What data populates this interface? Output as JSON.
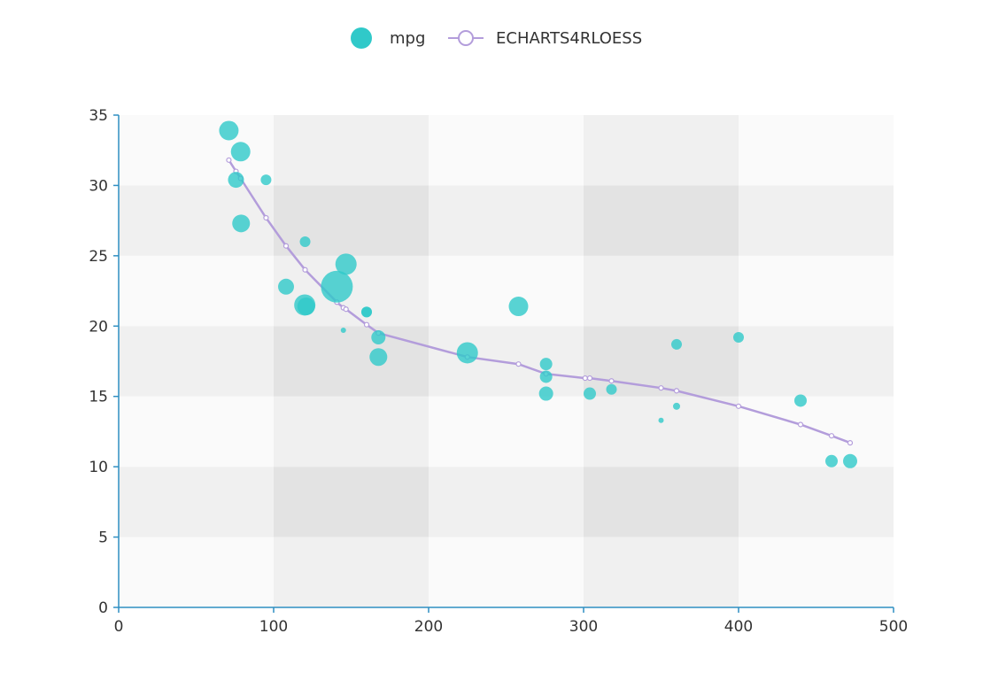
{
  "legend": {
    "placement": "top-center",
    "items": [
      {
        "label": "mpg",
        "icon": "circle-icon"
      },
      {
        "label": "ECHARTS4RLOESS",
        "icon": "line-circle-icon"
      }
    ]
  },
  "colors": {
    "scatter": "#30c9c9",
    "loess": "#b39ddb",
    "axis": "#2f8fc2",
    "band_light": "#fafafa",
    "band_mid": "#f0f0f0",
    "band_dark": "#e3e3e3"
  },
  "chart_data": {
    "type": "scatter",
    "xlim": [
      0,
      500
    ],
    "ylim": [
      0,
      35
    ],
    "x_ticks": [
      0,
      100,
      200,
      300,
      400,
      500
    ],
    "y_ticks": [
      0,
      5,
      10,
      15,
      20,
      25,
      30,
      35
    ],
    "grid": true,
    "series": [
      {
        "name": "mpg",
        "type": "scatter",
        "points": [
          {
            "x": 71.1,
            "y": 33.9,
            "size": 11
          },
          {
            "x": 78.7,
            "y": 32.4,
            "size": 11
          },
          {
            "x": 75.7,
            "y": 30.4,
            "size": 9
          },
          {
            "x": 95.1,
            "y": 30.4,
            "size": 6
          },
          {
            "x": 79.0,
            "y": 27.3,
            "size": 10
          },
          {
            "x": 120.3,
            "y": 26.0,
            "size": 6
          },
          {
            "x": 108.0,
            "y": 22.8,
            "size": 9
          },
          {
            "x": 120.1,
            "y": 21.5,
            "size": 12
          },
          {
            "x": 121.0,
            "y": 21.4,
            "size": 10
          },
          {
            "x": 140.8,
            "y": 22.8,
            "size": 18
          },
          {
            "x": 146.7,
            "y": 24.4,
            "size": 12
          },
          {
            "x": 145.0,
            "y": 19.7,
            "size": 3
          },
          {
            "x": 160.0,
            "y": 21.0,
            "size": 6
          },
          {
            "x": 160.0,
            "y": 21.0,
            "size": 6
          },
          {
            "x": 167.6,
            "y": 19.2,
            "size": 8
          },
          {
            "x": 167.6,
            "y": 17.8,
            "size": 10
          },
          {
            "x": 225.0,
            "y": 18.1,
            "size": 12
          },
          {
            "x": 258.0,
            "y": 21.4,
            "size": 11
          },
          {
            "x": 275.8,
            "y": 17.3,
            "size": 7
          },
          {
            "x": 275.8,
            "y": 16.4,
            "size": 7
          },
          {
            "x": 275.8,
            "y": 15.2,
            "size": 8
          },
          {
            "x": 304.0,
            "y": 15.2,
            "size": 7
          },
          {
            "x": 318.0,
            "y": 15.5,
            "size": 6
          },
          {
            "x": 350.0,
            "y": 13.3,
            "size": 3
          },
          {
            "x": 360.0,
            "y": 18.7,
            "size": 6
          },
          {
            "x": 360.0,
            "y": 14.3,
            "size": 4
          },
          {
            "x": 400.0,
            "y": 19.2,
            "size": 6
          },
          {
            "x": 440.0,
            "y": 14.7,
            "size": 7
          },
          {
            "x": 460.0,
            "y": 10.4,
            "size": 7
          },
          {
            "x": 472.0,
            "y": 10.4,
            "size": 8
          }
        ]
      },
      {
        "name": "ECHARTS4RLOESS",
        "type": "line",
        "points": [
          {
            "x": 71.1,
            "y": 31.8
          },
          {
            "x": 75.7,
            "y": 31.0
          },
          {
            "x": 78.7,
            "y": 30.5
          },
          {
            "x": 95.1,
            "y": 27.7
          },
          {
            "x": 108.0,
            "y": 25.7
          },
          {
            "x": 120.3,
            "y": 24.0
          },
          {
            "x": 140.8,
            "y": 21.7
          },
          {
            "x": 145.0,
            "y": 21.3
          },
          {
            "x": 146.7,
            "y": 21.2
          },
          {
            "x": 160.0,
            "y": 20.1
          },
          {
            "x": 167.6,
            "y": 19.5
          },
          {
            "x": 225.0,
            "y": 17.8
          },
          {
            "x": 258.0,
            "y": 17.3
          },
          {
            "x": 275.8,
            "y": 16.6
          },
          {
            "x": 301.0,
            "y": 16.3
          },
          {
            "x": 304.0,
            "y": 16.3
          },
          {
            "x": 318.0,
            "y": 16.1
          },
          {
            "x": 350.0,
            "y": 15.6
          },
          {
            "x": 360.0,
            "y": 15.4
          },
          {
            "x": 400.0,
            "y": 14.3
          },
          {
            "x": 440.0,
            "y": 13.0
          },
          {
            "x": 460.0,
            "y": 12.2
          },
          {
            "x": 472.0,
            "y": 11.7
          }
        ]
      }
    ]
  }
}
